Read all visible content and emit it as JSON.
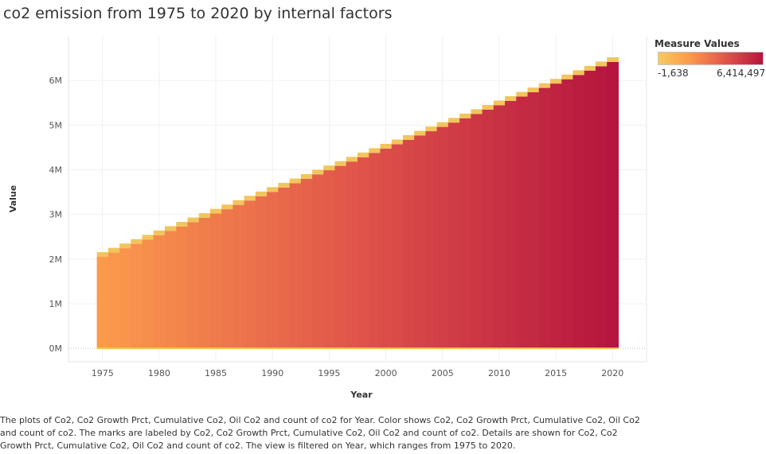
{
  "chart_data": {
    "type": "bar",
    "title": "co2 emission from 1975 to 2020 by internal factors",
    "xlabel": "Year",
    "ylabel": "Value",
    "xlim": [
      1972,
      2023
    ],
    "ylim": [
      -300000,
      7000000
    ],
    "x_ticks": [
      1975,
      1980,
      1985,
      1990,
      1995,
      2000,
      2005,
      2010,
      2015,
      2020
    ],
    "y_ticks": [
      0,
      1000000,
      2000000,
      3000000,
      4000000,
      5000000,
      6000000
    ],
    "y_tick_labels": [
      "0M",
      "1M",
      "2M",
      "3M",
      "4M",
      "5M",
      "6M"
    ],
    "grid": true,
    "legend": {
      "title": "Measure Values",
      "min_label": "-1,638",
      "max_label": "6,414,497",
      "placement": "top-right"
    },
    "color_scale": [
      "#fb9a4d",
      "#e0544a",
      "#b5153e"
    ],
    "cap_color": "#f2c55c",
    "year_start": 1975,
    "year_end": 2020,
    "cumulative_start": 2050000,
    "cumulative_end": 6414497,
    "cap_height": 105000,
    "caption": "The plots of Co2, Co2 Growth Prct, Cumulative Co2, Oil Co2 and count of co2 for Year.  Color shows Co2, Co2 Growth Prct, Cumulative Co2, Oil Co2 and count of co2.  The marks are labeled by Co2, Co2 Growth Prct, Cumulative Co2, Oil Co2 and count of co2.  Details are shown for Co2, Co2 Growth Prct, Cumulative Co2, Oil Co2 and count of co2. The view is filtered on Year, which ranges from 1975 to 2020."
  }
}
